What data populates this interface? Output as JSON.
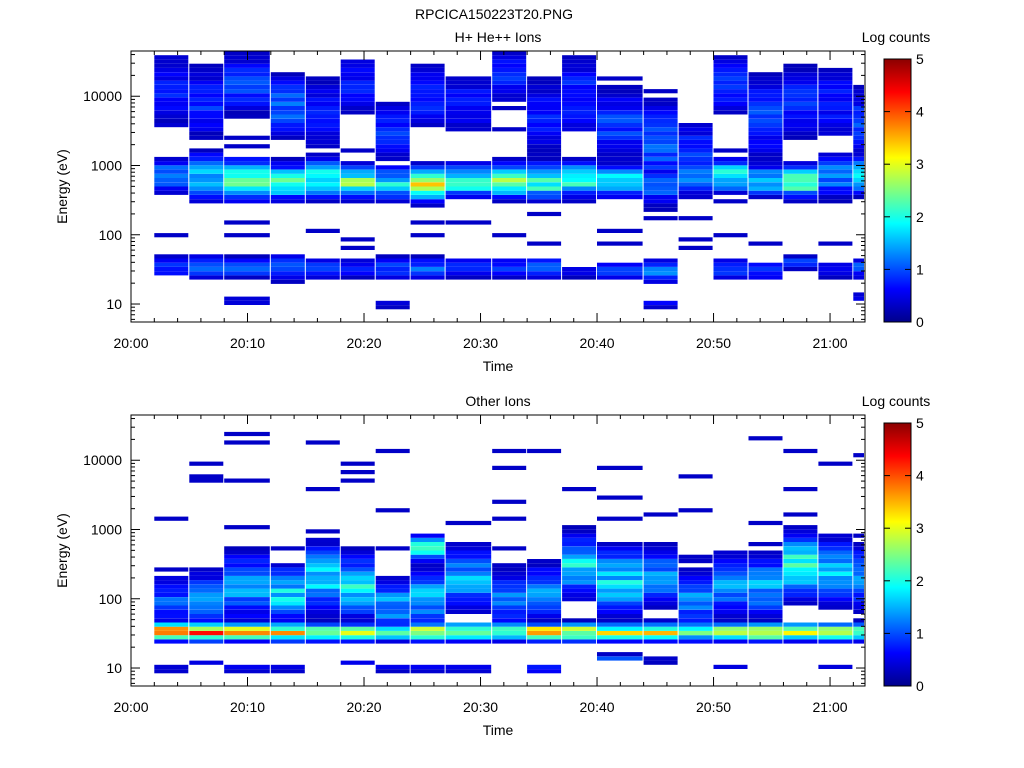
{
  "figure": {
    "title": "RPCICA150223T20.PNG"
  },
  "colors": {
    "axis": "#000000",
    "background": "#ffffff"
  },
  "chart_data": [
    {
      "type": "heatmap",
      "title": "H+ He++ Ions",
      "xlabel": "Time",
      "ylabel": "Energy (eV)",
      "y_scale": "log",
      "ylim": [
        5.5,
        45000
      ],
      "xlim": [
        "20:00",
        "21:03"
      ],
      "x_ticks": [
        "20:00",
        "20:10",
        "20:20",
        "20:30",
        "20:40",
        "20:50",
        "21:00"
      ],
      "y_ticks": [
        "10",
        "100",
        "1000",
        "10000"
      ],
      "colorbar": {
        "label": "Log counts",
        "range": [
          0,
          5
        ],
        "ticks": [
          "0",
          "1",
          "2",
          "3",
          "4",
          "5"
        ],
        "colormap": "jet"
      },
      "time_bins": [
        "20:02",
        "20:05",
        "20:08",
        "20:12",
        "20:15",
        "20:18",
        "20:21",
        "20:24",
        "20:27",
        "20:31",
        "20:34",
        "20:37",
        "20:40",
        "20:44",
        "20:47",
        "20:50",
        "20:53",
        "20:56",
        "20:59",
        "21:02"
      ],
      "profiles": [
        {
          "from": "20:02",
          "to": "20:05",
          "components": [
            {
              "e": 700,
              "w": 0.18,
              "v": 1.2
            },
            {
              "e": 35,
              "w": 0.1,
              "v": 1.0
            },
            {
              "e": 12000,
              "w": 0.4,
              "v": 0.7
            }
          ]
        },
        {
          "from": "20:05",
          "to": "20:08",
          "components": [
            {
              "e": 700,
              "w": 0.22,
              "v": 1.6
            },
            {
              "e": 35,
              "w": 0.12,
              "v": 1.3
            },
            {
              "e": 8000,
              "w": 0.35,
              "v": 0.8
            }
          ]
        },
        {
          "from": "20:08",
          "to": "20:12",
          "components": [
            {
              "e": 620,
              "w": 0.18,
              "v": 2.3
            },
            {
              "e": 33,
              "w": 0.1,
              "v": 1.1
            },
            {
              "e": 11,
              "w": 0.05,
              "v": 0.6
            },
            {
              "e": 15000,
              "w": 0.3,
              "v": 0.9
            }
          ]
        },
        {
          "from": "20:12",
          "to": "20:15",
          "components": [
            {
              "e": 580,
              "w": 0.16,
              "v": 2.1
            },
            {
              "e": 33,
              "w": 0.12,
              "v": 1.2
            },
            {
              "e": 7000,
              "w": 0.3,
              "v": 1.1
            }
          ]
        },
        {
          "from": "20:15",
          "to": "20:18",
          "components": [
            {
              "e": 650,
              "w": 0.18,
              "v": 2.2
            },
            {
              "e": 33,
              "w": 0.12,
              "v": 0.8
            },
            {
              "e": 5000,
              "w": 0.4,
              "v": 0.7
            }
          ]
        },
        {
          "from": "20:18",
          "to": "20:21",
          "components": [
            {
              "e": 580,
              "w": 0.15,
              "v": 2.3
            },
            {
              "e": 33,
              "w": 0.1,
              "v": 0.8
            },
            {
              "e": 15000,
              "w": 0.3,
              "v": 0.7
            }
          ]
        },
        {
          "from": "20:21",
          "to": "20:24",
          "components": [
            {
              "e": 550,
              "w": 0.15,
              "v": 1.8
            },
            {
              "e": 33,
              "w": 0.12,
              "v": 0.9
            },
            {
              "e": 10,
              "w": 0.05,
              "v": 0.5
            },
            {
              "e": 3000,
              "w": 0.3,
              "v": 0.8
            }
          ]
        },
        {
          "from": "20:24",
          "to": "20:27",
          "components": [
            {
              "e": 550,
              "w": 0.15,
              "v": 2.9
            },
            {
              "e": 33,
              "w": 0.1,
              "v": 1.1
            },
            {
              "e": 10000,
              "w": 0.35,
              "v": 0.8
            }
          ]
        },
        {
          "from": "20:27",
          "to": "20:31",
          "components": [
            {
              "e": 600,
              "w": 0.14,
              "v": 2.2
            },
            {
              "e": 33,
              "w": 0.1,
              "v": 0.9
            },
            {
              "e": 8000,
              "w": 0.3,
              "v": 0.7
            }
          ]
        },
        {
          "from": "20:31",
          "to": "20:34",
          "components": [
            {
              "e": 600,
              "w": 0.16,
              "v": 2.3
            },
            {
              "e": 33,
              "w": 0.1,
              "v": 0.9
            },
            {
              "e": 20000,
              "w": 0.3,
              "v": 0.8
            }
          ]
        },
        {
          "from": "20:34",
          "to": "20:37",
          "components": [
            {
              "e": 600,
              "w": 0.16,
              "v": 2.3
            },
            {
              "e": 33,
              "w": 0.1,
              "v": 1.1
            },
            {
              "e": 5000,
              "w": 0.4,
              "v": 0.7
            }
          ]
        },
        {
          "from": "20:37",
          "to": "20:40",
          "components": [
            {
              "e": 650,
              "w": 0.15,
              "v": 2.2
            },
            {
              "e": 30,
              "w": 0.08,
              "v": 0.6
            },
            {
              "e": 10000,
              "w": 0.4,
              "v": 0.8
            }
          ]
        },
        {
          "from": "20:40",
          "to": "20:44",
          "components": [
            {
              "e": 600,
              "w": 0.15,
              "v": 1.8
            },
            {
              "e": 30,
              "w": 0.1,
              "v": 0.8
            },
            {
              "e": 4000,
              "w": 0.35,
              "v": 0.9
            }
          ]
        },
        {
          "from": "20:44",
          "to": "20:47",
          "components": [
            {
              "e": 500,
              "w": 0.2,
              "v": 1.0
            },
            {
              "e": 30,
              "w": 0.1,
              "v": 1.5
            },
            {
              "e": 10,
              "w": 0.05,
              "v": 0.6
            },
            {
              "e": 2000,
              "w": 0.4,
              "v": 1.1
            }
          ]
        },
        {
          "from": "20:47",
          "to": "20:50",
          "components": [
            {
              "e": 700,
              "w": 0.2,
              "v": 1.2
            },
            {
              "e": 1500,
              "w": 0.3,
              "v": 0.9
            }
          ]
        },
        {
          "from": "20:50",
          "to": "20:53",
          "components": [
            {
              "e": 700,
              "w": 0.15,
              "v": 2.0
            },
            {
              "e": 33,
              "w": 0.1,
              "v": 1.0
            },
            {
              "e": 15000,
              "w": 0.3,
              "v": 0.8
            }
          ]
        },
        {
          "from": "20:53",
          "to": "20:56",
          "components": [
            {
              "e": 600,
              "w": 0.15,
              "v": 1.6
            },
            {
              "e": 30,
              "w": 0.1,
              "v": 0.8
            },
            {
              "e": 5000,
              "w": 0.4,
              "v": 0.9
            }
          ]
        },
        {
          "from": "20:56",
          "to": "20:59",
          "components": [
            {
              "e": 600,
              "w": 0.14,
              "v": 2.6
            },
            {
              "e": 40,
              "w": 0.08,
              "v": 0.8
            },
            {
              "e": 8000,
              "w": 0.35,
              "v": 0.8
            }
          ]
        },
        {
          "from": "20:59",
          "to": "21:02",
          "components": [
            {
              "e": 700,
              "w": 0.2,
              "v": 1.3
            },
            {
              "e": 30,
              "w": 0.1,
              "v": 0.6
            },
            {
              "e": 8000,
              "w": 0.4,
              "v": 0.7
            }
          ]
        },
        {
          "from": "21:02",
          "to": "21:03",
          "components": [
            {
              "e": 700,
              "w": 0.16,
              "v": 2.0
            },
            {
              "e": 33,
              "w": 0.1,
              "v": 1.0
            },
            {
              "e": 13,
              "w": 0.05,
              "v": 0.6
            },
            {
              "e": 4000,
              "w": 0.35,
              "v": 0.9
            }
          ]
        }
      ]
    },
    {
      "type": "heatmap",
      "title": "Other Ions",
      "xlabel": "Time",
      "ylabel": "Energy (eV)",
      "y_scale": "log",
      "ylim": [
        5.5,
        45000
      ],
      "xlim": [
        "20:00",
        "21:03"
      ],
      "x_ticks": [
        "20:00",
        "20:10",
        "20:20",
        "20:30",
        "20:40",
        "20:50",
        "21:00"
      ],
      "y_ticks": [
        "10",
        "100",
        "1000",
        "10000"
      ],
      "colorbar": {
        "label": "Log counts",
        "range": [
          0,
          5
        ],
        "ticks": [
          "0",
          "1",
          "2",
          "3",
          "4",
          "5"
        ],
        "colormap": "jet"
      },
      "time_bins": [
        "20:02",
        "20:05",
        "20:08",
        "20:12",
        "20:15",
        "20:18",
        "20:21",
        "20:24",
        "20:27",
        "20:31",
        "20:34",
        "20:37",
        "20:40",
        "20:44",
        "20:47",
        "20:50",
        "20:53",
        "20:56",
        "20:59",
        "21:02"
      ],
      "profiles": [
        {
          "from": "20:02",
          "to": "20:05",
          "components": [
            {
              "e": 33,
              "w": 0.08,
              "v": 3.7
            },
            {
              "e": 90,
              "w": 0.25,
              "v": 1.0
            },
            {
              "e": 10,
              "w": 0.05,
              "v": 0.5
            }
          ]
        },
        {
          "from": "20:05",
          "to": "20:08",
          "components": [
            {
              "e": 33,
              "w": 0.08,
              "v": 3.6
            },
            {
              "e": 100,
              "w": 0.25,
              "v": 1.2
            },
            {
              "e": 12,
              "w": 0.05,
              "v": 0.6
            }
          ]
        },
        {
          "from": "20:08",
          "to": "20:12",
          "components": [
            {
              "e": 33,
              "w": 0.08,
              "v": 3.3
            },
            {
              "e": 150,
              "w": 0.3,
              "v": 1.4
            },
            {
              "e": 10,
              "w": 0.05,
              "v": 0.5
            }
          ]
        },
        {
          "from": "20:12",
          "to": "20:15",
          "components": [
            {
              "e": 33,
              "w": 0.08,
              "v": 3.3
            },
            {
              "e": 120,
              "w": 0.25,
              "v": 1.7
            },
            {
              "e": 10,
              "w": 0.05,
              "v": 0.6
            }
          ]
        },
        {
          "from": "20:15",
          "to": "20:18",
          "components": [
            {
              "e": 33,
              "w": 0.08,
              "v": 2.8
            },
            {
              "e": 200,
              "w": 0.3,
              "v": 1.7
            }
          ]
        },
        {
          "from": "20:18",
          "to": "20:21",
          "components": [
            {
              "e": 33,
              "w": 0.08,
              "v": 2.7
            },
            {
              "e": 150,
              "w": 0.28,
              "v": 1.8
            },
            {
              "e": 12,
              "w": 0.05,
              "v": 0.5
            }
          ]
        },
        {
          "from": "20:21",
          "to": "20:24",
          "components": [
            {
              "e": 33,
              "w": 0.08,
              "v": 2.7
            },
            {
              "e": 80,
              "w": 0.25,
              "v": 1.4
            },
            {
              "e": 10,
              "w": 0.05,
              "v": 0.5
            }
          ]
        },
        {
          "from": "20:24",
          "to": "20:27",
          "components": [
            {
              "e": 33,
              "w": 0.08,
              "v": 2.9
            },
            {
              "e": 550,
              "w": 0.12,
              "v": 1.9
            },
            {
              "e": 100,
              "w": 0.25,
              "v": 1.5
            },
            {
              "e": 10,
              "w": 0.05,
              "v": 0.6
            }
          ]
        },
        {
          "from": "20:27",
          "to": "20:31",
          "components": [
            {
              "e": 33,
              "w": 0.08,
              "v": 2.9
            },
            {
              "e": 200,
              "w": 0.3,
              "v": 1.4
            },
            {
              "e": 10,
              "w": 0.05,
              "v": 0.5
            }
          ]
        },
        {
          "from": "20:31",
          "to": "20:34",
          "components": [
            {
              "e": 33,
              "w": 0.08,
              "v": 2.7
            },
            {
              "e": 100,
              "w": 0.25,
              "v": 1.2
            }
          ]
        },
        {
          "from": "20:34",
          "to": "20:37",
          "components": [
            {
              "e": 33,
              "w": 0.08,
              "v": 3.1
            },
            {
              "e": 120,
              "w": 0.25,
              "v": 1.4
            },
            {
              "e": 10,
              "w": 0.05,
              "v": 0.8
            }
          ]
        },
        {
          "from": "20:37",
          "to": "20:40",
          "components": [
            {
              "e": 33,
              "w": 0.08,
              "v": 3.0
            },
            {
              "e": 300,
              "w": 0.28,
              "v": 1.8
            }
          ]
        },
        {
          "from": "20:40",
          "to": "20:44",
          "components": [
            {
              "e": 33,
              "w": 0.08,
              "v": 2.7
            },
            {
              "e": 180,
              "w": 0.3,
              "v": 1.7
            },
            {
              "e": 14,
              "w": 0.04,
              "v": 0.9
            }
          ]
        },
        {
          "from": "20:44",
          "to": "20:47",
          "components": [
            {
              "e": 33,
              "w": 0.08,
              "v": 3.2
            },
            {
              "e": 200,
              "w": 0.28,
              "v": 1.3
            },
            {
              "e": 13,
              "w": 0.04,
              "v": 0.5
            }
          ]
        },
        {
          "from": "20:47",
          "to": "20:50",
          "components": [
            {
              "e": 33,
              "w": 0.08,
              "v": 2.4
            },
            {
              "e": 100,
              "w": 0.25,
              "v": 1.3
            }
          ]
        },
        {
          "from": "20:50",
          "to": "20:53",
          "components": [
            {
              "e": 33,
              "w": 0.08,
              "v": 3.0
            },
            {
              "e": 150,
              "w": 0.3,
              "v": 1.3
            },
            {
              "e": 10,
              "w": 0.05,
              "v": 0.4
            }
          ]
        },
        {
          "from": "20:53",
          "to": "20:56",
          "components": [
            {
              "e": 33,
              "w": 0.08,
              "v": 3.1
            },
            {
              "e": 150,
              "w": 0.3,
              "v": 1.4
            }
          ]
        },
        {
          "from": "20:56",
          "to": "20:59",
          "components": [
            {
              "e": 33,
              "w": 0.08,
              "v": 3.0
            },
            {
              "e": 300,
              "w": 0.3,
              "v": 2.0
            }
          ]
        },
        {
          "from": "20:59",
          "to": "21:02",
          "components": [
            {
              "e": 33,
              "w": 0.08,
              "v": 2.7
            },
            {
              "e": 250,
              "w": 0.3,
              "v": 1.5
            },
            {
              "e": 10,
              "w": 0.05,
              "v": 0.5
            }
          ]
        },
        {
          "from": "21:02",
          "to": "21:03",
          "components": [
            {
              "e": 33,
              "w": 0.08,
              "v": 2.6
            },
            {
              "e": 200,
              "w": 0.3,
              "v": 1.3
            }
          ]
        }
      ]
    }
  ]
}
